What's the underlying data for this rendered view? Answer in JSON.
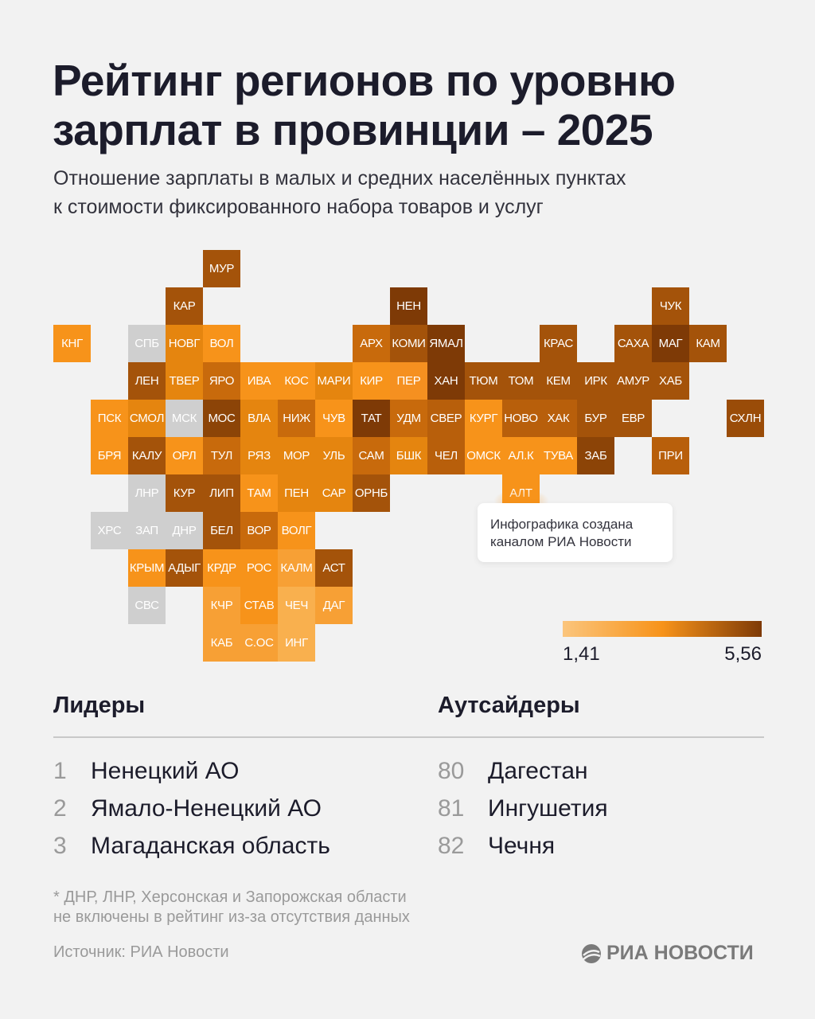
{
  "title_line1": "Рейтинг регионов по уровню",
  "title_line2": "зарплат в провинции – 2025",
  "subtitle_line1": "Отношение зарплаты в малых и средних населённых пунктах",
  "subtitle_line2": "к стоимости фиксированного набора товаров и услуг",
  "tooltip_line1": "Инфографика создана",
  "tooltip_line2": "каналом РИА Новости",
  "colors": {
    "no_data": "#cfcfcf",
    "scale_low": "#fbc57c",
    "scale_mid": "#f7931a",
    "scale_high": "#7e3a06",
    "background": "#f2f2f2"
  },
  "chart_data": {
    "type": "heatmap",
    "title": "Рейтинг регионов по уровню зарплат в провинции – 2025",
    "legend": {
      "min": "1,41",
      "max": "5,56",
      "placement": "bottom-right"
    },
    "tiles": [
      {
        "label": "МУР",
        "row": 0,
        "col": 4,
        "color": "#a4530a"
      },
      {
        "label": "КАР",
        "row": 1,
        "col": 3,
        "color": "#a4530a"
      },
      {
        "label": "НЕН",
        "row": 1,
        "col": 9,
        "color": "#7e3a06"
      },
      {
        "label": "ЧУК",
        "row": 1,
        "col": 16,
        "color": "#a4530a"
      },
      {
        "label": "КНГ",
        "row": 2,
        "col": 0,
        "color": "#f7931a"
      },
      {
        "label": "СПБ",
        "row": 2,
        "col": 2,
        "color": "#cfcfcf"
      },
      {
        "label": "НОВГ",
        "row": 2,
        "col": 3,
        "color": "#e5850f"
      },
      {
        "label": "ВОЛ",
        "row": 2,
        "col": 4,
        "color": "#f7931a"
      },
      {
        "label": "АРХ",
        "row": 2,
        "col": 8,
        "color": "#c86a0c"
      },
      {
        "label": "КОМИ",
        "row": 2,
        "col": 9,
        "color": "#a4530a"
      },
      {
        "label": "ЯМАЛ",
        "row": 2,
        "col": 10,
        "color": "#7e3a06"
      },
      {
        "label": "КРАС",
        "row": 2,
        "col": 13,
        "color": "#a4530a"
      },
      {
        "label": "САХА",
        "row": 2,
        "col": 15,
        "color": "#a4530a"
      },
      {
        "label": "МАГ",
        "row": 2,
        "col": 16,
        "color": "#7e3a06"
      },
      {
        "label": "КАМ",
        "row": 2,
        "col": 17,
        "color": "#a4530a"
      },
      {
        "label": "ЛЕН",
        "row": 3,
        "col": 2,
        "color": "#a4530a"
      },
      {
        "label": "ТВЕР",
        "row": 3,
        "col": 3,
        "color": "#e5850f"
      },
      {
        "label": "ЯРО",
        "row": 3,
        "col": 4,
        "color": "#c86a0c"
      },
      {
        "label": "ИВА",
        "row": 3,
        "col": 5,
        "color": "#f7931a"
      },
      {
        "label": "КОС",
        "row": 3,
        "col": 6,
        "color": "#f7931a"
      },
      {
        "label": "МАРИ",
        "row": 3,
        "col": 7,
        "color": "#e5850f"
      },
      {
        "label": "КИР",
        "row": 3,
        "col": 8,
        "color": "#f7931a"
      },
      {
        "label": "ПЕР",
        "row": 3,
        "col": 9,
        "color": "#f59020"
      },
      {
        "label": "ХАН",
        "row": 3,
        "col": 10,
        "color": "#7e3a06"
      },
      {
        "label": "ТЮМ",
        "row": 3,
        "col": 11,
        "color": "#a4530a"
      },
      {
        "label": "ТОМ",
        "row": 3,
        "col": 12,
        "color": "#a4530a"
      },
      {
        "label": "КЕМ",
        "row": 3,
        "col": 13,
        "color": "#a4530a"
      },
      {
        "label": "ИРК",
        "row": 3,
        "col": 14,
        "color": "#a4530a"
      },
      {
        "label": "АМУР",
        "row": 3,
        "col": 15,
        "color": "#a4530a"
      },
      {
        "label": "ХАБ",
        "row": 3,
        "col": 16,
        "color": "#a4530a"
      },
      {
        "label": "ПСК",
        "row": 4,
        "col": 1,
        "color": "#f7931a"
      },
      {
        "label": "СМОЛ",
        "row": 4,
        "col": 2,
        "color": "#e5850f"
      },
      {
        "label": "МСК",
        "row": 4,
        "col": 3,
        "color": "#cfcfcf"
      },
      {
        "label": "МОС",
        "row": 4,
        "col": 4,
        "color": "#8c4407"
      },
      {
        "label": "ВЛА",
        "row": 4,
        "col": 5,
        "color": "#e5850f"
      },
      {
        "label": "НИЖ",
        "row": 4,
        "col": 6,
        "color": "#c86a0c"
      },
      {
        "label": "ЧУВ",
        "row": 4,
        "col": 7,
        "color": "#f7931a"
      },
      {
        "label": "ТАТ",
        "row": 4,
        "col": 8,
        "color": "#7e3a06"
      },
      {
        "label": "УДМ",
        "row": 4,
        "col": 9,
        "color": "#c86a0c"
      },
      {
        "label": "СВЕР",
        "row": 4,
        "col": 10,
        "color": "#b85f0b"
      },
      {
        "label": "КУРГ",
        "row": 4,
        "col": 11,
        "color": "#f7931a"
      },
      {
        "label": "НОВО",
        "row": 4,
        "col": 12,
        "color": "#b85f0b"
      },
      {
        "label": "ХАК",
        "row": 4,
        "col": 13,
        "color": "#b85f0b"
      },
      {
        "label": "БУР",
        "row": 4,
        "col": 14,
        "color": "#a4530a"
      },
      {
        "label": "ЕВР",
        "row": 4,
        "col": 15,
        "color": "#a4530a"
      },
      {
        "label": "СХЛН",
        "row": 4,
        "col": 18,
        "color": "#9a4c08"
      },
      {
        "label": "БРЯ",
        "row": 5,
        "col": 1,
        "color": "#f7931a"
      },
      {
        "label": "КАЛУ",
        "row": 5,
        "col": 2,
        "color": "#a4530a"
      },
      {
        "label": "ОРЛ",
        "row": 5,
        "col": 3,
        "color": "#f7931a"
      },
      {
        "label": "ТУЛ",
        "row": 5,
        "col": 4,
        "color": "#c86a0c"
      },
      {
        "label": "РЯЗ",
        "row": 5,
        "col": 5,
        "color": "#e5850f"
      },
      {
        "label": "МОР",
        "row": 5,
        "col": 6,
        "color": "#e5850f"
      },
      {
        "label": "УЛЬ",
        "row": 5,
        "col": 7,
        "color": "#e5850f"
      },
      {
        "label": "САМ",
        "row": 5,
        "col": 8,
        "color": "#c86a0c"
      },
      {
        "label": "БШК",
        "row": 5,
        "col": 9,
        "color": "#e5850f"
      },
      {
        "label": "ЧЕЛ",
        "row": 5,
        "col": 10,
        "color": "#b85f0b"
      },
      {
        "label": "ОМСК",
        "row": 5,
        "col": 11,
        "color": "#f7931a"
      },
      {
        "label": "АЛ.К",
        "row": 5,
        "col": 12,
        "color": "#f7931a"
      },
      {
        "label": "ТУВА",
        "row": 5,
        "col": 13,
        "color": "#f7931a"
      },
      {
        "label": "ЗАБ",
        "row": 5,
        "col": 14,
        "color": "#8c4407"
      },
      {
        "label": "ПРИ",
        "row": 5,
        "col": 16,
        "color": "#b85f0b"
      },
      {
        "label": "ЛНР",
        "row": 6,
        "col": 2,
        "color": "#cfcfcf"
      },
      {
        "label": "КУР",
        "row": 6,
        "col": 3,
        "color": "#a4530a"
      },
      {
        "label": "ЛИП",
        "row": 6,
        "col": 4,
        "color": "#a4530a"
      },
      {
        "label": "ТАМ",
        "row": 6,
        "col": 5,
        "color": "#f7931a"
      },
      {
        "label": "ПЕН",
        "row": 6,
        "col": 6,
        "color": "#e5850f"
      },
      {
        "label": "САР",
        "row": 6,
        "col": 7,
        "color": "#e5850f"
      },
      {
        "label": "ОРНБ",
        "row": 6,
        "col": 8,
        "color": "#a4530a"
      },
      {
        "label": "АЛТ",
        "row": 6,
        "col": 12,
        "color": "#f7931a"
      },
      {
        "label": "ХРС",
        "row": 7,
        "col": 1,
        "color": "#cfcfcf"
      },
      {
        "label": "ЗАП",
        "row": 7,
        "col": 2,
        "color": "#cfcfcf"
      },
      {
        "label": "ДНР",
        "row": 7,
        "col": 3,
        "color": "#cfcfcf"
      },
      {
        "label": "БЕЛ",
        "row": 7,
        "col": 4,
        "color": "#a4530a"
      },
      {
        "label": "ВОР",
        "row": 7,
        "col": 5,
        "color": "#c86a0c"
      },
      {
        "label": "ВОЛГ",
        "row": 7,
        "col": 6,
        "color": "#f7931a"
      },
      {
        "label": "КРЫМ",
        "row": 8,
        "col": 2,
        "color": "#f7931a"
      },
      {
        "label": "АДЫГ",
        "row": 8,
        "col": 3,
        "color": "#a4530a"
      },
      {
        "label": "КРДР",
        "row": 8,
        "col": 4,
        "color": "#f7931a"
      },
      {
        "label": "РОС",
        "row": 8,
        "col": 5,
        "color": "#f7931a"
      },
      {
        "label": "КАЛМ",
        "row": 8,
        "col": 6,
        "color": "#f7a035"
      },
      {
        "label": "АСТ",
        "row": 8,
        "col": 7,
        "color": "#a4530a"
      },
      {
        "label": "СВС",
        "row": 9,
        "col": 2,
        "color": "#cfcfcf"
      },
      {
        "label": "КЧР",
        "row": 9,
        "col": 4,
        "color": "#f7a035"
      },
      {
        "label": "СТАВ",
        "row": 9,
        "col": 5,
        "color": "#f7931a"
      },
      {
        "label": "ЧЕЧ",
        "row": 9,
        "col": 6,
        "color": "#f9b04e"
      },
      {
        "label": "ДАГ",
        "row": 9,
        "col": 7,
        "color": "#f7a035"
      },
      {
        "label": "КАБ",
        "row": 10,
        "col": 4,
        "color": "#f7a035"
      },
      {
        "label": "С.ОС",
        "row": 10,
        "col": 5,
        "color": "#f7a035"
      },
      {
        "label": "ИНГ",
        "row": 10,
        "col": 6,
        "color": "#f9b04e"
      }
    ]
  },
  "leaders": {
    "heading": "Лидеры",
    "items": [
      {
        "rank": "1",
        "name": "Ненецкий АО"
      },
      {
        "rank": "2",
        "name": "Ямало-Ненецкий АО"
      },
      {
        "rank": "3",
        "name": "Магаданская область"
      }
    ]
  },
  "outsiders": {
    "heading": "Аутсайдеры",
    "items": [
      {
        "rank": "80",
        "name": "Дагестан"
      },
      {
        "rank": "81",
        "name": "Ингушетия"
      },
      {
        "rank": "82",
        "name": "Чечня"
      }
    ]
  },
  "footnote_line1": "* ДНР, ЛНР, Херсонская и Запорожская области",
  "footnote_line2": "не включены в рейтинг из-за отсутствия данных",
  "source": "Источник: РИА Новости",
  "logo_text": "РИА НОВОСТИ"
}
